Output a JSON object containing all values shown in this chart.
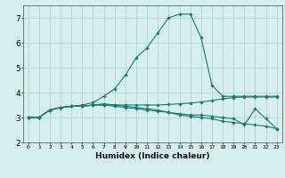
{
  "xlabel": "Humidex (Indice chaleur)",
  "ylabel": "",
  "xlim": [
    -0.5,
    23.5
  ],
  "ylim": [
    2.0,
    7.5
  ],
  "yticks": [
    2,
    3,
    4,
    5,
    6,
    7
  ],
  "xticks": [
    0,
    1,
    2,
    3,
    4,
    5,
    6,
    7,
    8,
    9,
    10,
    11,
    12,
    13,
    14,
    15,
    16,
    17,
    18,
    19,
    20,
    21,
    22,
    23
  ],
  "bg_color": "#d6efee",
  "grid_color": "#b8d8d6",
  "line_color": "#1a7a6e",
  "series": [
    {
      "x": [
        0,
        1,
        2,
        3,
        4,
        5,
        6,
        7,
        8,
        9,
        10,
        11,
        12,
        13,
        14,
        15,
        16,
        17,
        18,
        19,
        20,
        21,
        22,
        23
      ],
      "y": [
        3.0,
        3.0,
        3.3,
        3.4,
        3.45,
        3.45,
        3.5,
        3.55,
        3.5,
        3.45,
        3.4,
        3.35,
        3.3,
        3.2,
        3.1,
        3.05,
        3.0,
        2.95,
        2.85,
        2.8,
        2.75,
        2.7,
        2.65,
        2.55
      ]
    },
    {
      "x": [
        0,
        1,
        2,
        3,
        4,
        5,
        6,
        7,
        8,
        9,
        10,
        11,
        12,
        13,
        14,
        15,
        16,
        17,
        18,
        19,
        20,
        21,
        22,
        23
      ],
      "y": [
        3.0,
        3.0,
        3.3,
        3.4,
        3.45,
        3.5,
        3.6,
        3.85,
        4.15,
        4.7,
        5.4,
        5.8,
        6.4,
        7.0,
        7.15,
        7.15,
        6.2,
        4.3,
        3.85,
        3.85,
        3.85,
        3.85,
        3.85,
        3.85
      ]
    },
    {
      "x": [
        0,
        1,
        2,
        3,
        4,
        5,
        6,
        7,
        8,
        9,
        10,
        11,
        12,
        13,
        14,
        15,
        16,
        17,
        18,
        19,
        20,
        21,
        22,
        23
      ],
      "y": [
        3.0,
        3.0,
        3.3,
        3.4,
        3.45,
        3.45,
        3.5,
        3.5,
        3.5,
        3.5,
        3.5,
        3.5,
        3.5,
        3.52,
        3.55,
        3.58,
        3.62,
        3.68,
        3.75,
        3.8,
        3.82,
        3.82,
        3.82,
        3.82
      ]
    },
    {
      "x": [
        0,
        1,
        2,
        3,
        4,
        5,
        6,
        7,
        8,
        9,
        10,
        11,
        12,
        13,
        14,
        15,
        16,
        17,
        18,
        19,
        20,
        21,
        22,
        23
      ],
      "y": [
        3.0,
        3.0,
        3.3,
        3.4,
        3.45,
        3.45,
        3.5,
        3.5,
        3.45,
        3.4,
        3.35,
        3.3,
        3.25,
        3.2,
        3.15,
        3.1,
        3.1,
        3.05,
        3.0,
        2.95,
        2.7,
        3.35,
        2.95,
        2.55
      ]
    }
  ]
}
